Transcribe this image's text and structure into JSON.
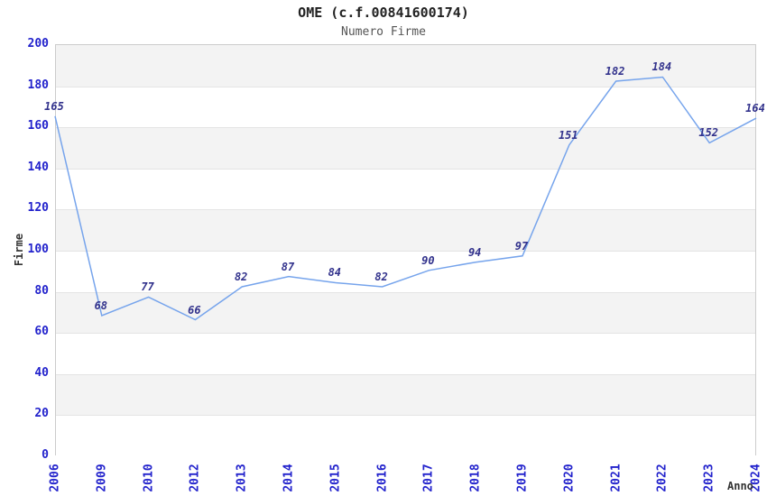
{
  "chart": {
    "title": "OME (c.f.00841600174)",
    "subtitle": "Numero Firme",
    "y_axis_title": "Firme",
    "x_axis_title": "Anno"
  },
  "chart_data": {
    "type": "line",
    "title": "OME (c.f.00841600174)",
    "subtitle": "Numero Firme",
    "xlabel": "Anno",
    "ylabel": "Firme",
    "categories": [
      "2006",
      "2009",
      "2010",
      "2012",
      "2013",
      "2014",
      "2015",
      "2016",
      "2017",
      "2018",
      "2019",
      "2020",
      "2021",
      "2022",
      "2023",
      "2024"
    ],
    "values": [
      165,
      68,
      77,
      66,
      82,
      87,
      84,
      82,
      90,
      94,
      97,
      151,
      182,
      184,
      152,
      164
    ],
    "ylim": [
      0,
      200
    ],
    "ytick_step": 20,
    "grid": "horizontal-bands-alternating",
    "legend": "none",
    "point_labels_visible": true,
    "colors": {
      "line": "#76a4ec",
      "tick_label": "#2222cc",
      "value_label": "#32328c",
      "band_gray": "#f3f3f3",
      "grid_line": "#e4e4e4",
      "plot_border": "#cccccc",
      "title": "#222222",
      "subtitle": "#555555",
      "axis_title": "#333333"
    }
  }
}
